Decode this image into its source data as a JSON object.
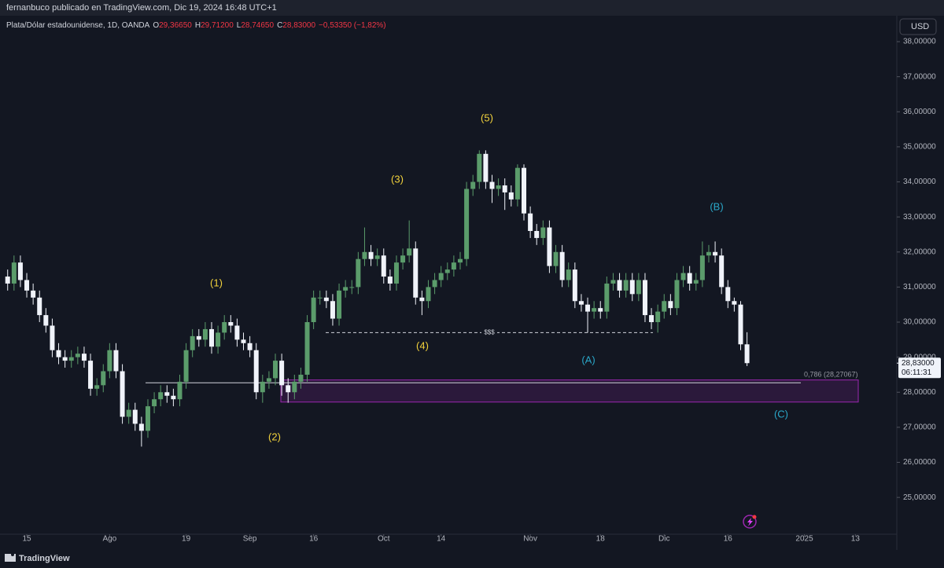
{
  "header": {
    "publisher": "fernanbuco publicado en TradingView.com, Dic 19, 2024 16:48 UTC+1"
  },
  "footer": {
    "brand": "TradingView"
  },
  "currency_button": "USD",
  "legend": {
    "symbol": "Plata/Dólar estadounidense, 1D, OANDA",
    "items": [
      {
        "key": "O",
        "value": "29,36650"
      },
      {
        "key": "H",
        "value": "29,71200"
      },
      {
        "key": "L",
        "value": "28,74650"
      },
      {
        "key": "C",
        "value": "28,83000"
      }
    ],
    "change": "−0,53350 (−1,82%)"
  },
  "chart_data": {
    "type": "candlestick",
    "up_color": "#5b9c6b",
    "down_color": "#f0f3fa",
    "grid": false,
    "xlim": [
      -1.2,
      139.5
    ],
    "xticks": [
      {
        "value": 3,
        "label": "15"
      },
      {
        "value": 16,
        "label": "Ago"
      },
      {
        "value": 28,
        "label": "19"
      },
      {
        "value": 38,
        "label": "Sep"
      },
      {
        "value": 48,
        "label": "16"
      },
      {
        "value": 59,
        "label": "Oct"
      },
      {
        "value": 68,
        "label": "14"
      },
      {
        "value": 82,
        "label": "Nov"
      },
      {
        "value": 93,
        "label": "18"
      },
      {
        "value": 103,
        "label": "Dic"
      },
      {
        "value": 113,
        "label": "16"
      },
      {
        "value": 125,
        "label": "2025"
      },
      {
        "value": 133,
        "label": "13"
      }
    ],
    "ylim": [
      23.95,
      38.74
    ],
    "yticks": [
      {
        "value": 25,
        "label": "25,00000"
      },
      {
        "value": 26,
        "label": "26,00000"
      },
      {
        "value": 27,
        "label": "27,00000"
      },
      {
        "value": 28,
        "label": "28,00000"
      },
      {
        "value": 29,
        "label": "29,00000"
      },
      {
        "value": 30,
        "label": "30,00000"
      },
      {
        "value": 31,
        "label": "31,00000"
      },
      {
        "value": 32,
        "label": "32,00000"
      },
      {
        "value": 33,
        "label": "33,00000"
      },
      {
        "value": 34,
        "label": "34,00000"
      },
      {
        "value": 35,
        "label": "35,00000"
      },
      {
        "value": 36,
        "label": "36,00000"
      },
      {
        "value": 37,
        "label": "37,00000"
      },
      {
        "value": 38,
        "label": "38,00000"
      }
    ],
    "open": [
      31.3,
      31.1,
      31.7,
      31.2,
      30.9,
      30.7,
      30.2,
      29.9,
      29.2,
      29.0,
      28.9,
      29.0,
      29.1,
      28.9,
      28.1,
      28.2,
      28.6,
      29.2,
      28.6,
      27.3,
      27.5,
      27.1,
      26.9,
      27.6,
      27.8,
      28.0,
      27.9,
      27.8,
      28.3,
      29.2,
      29.6,
      29.5,
      29.8,
      29.3,
      29.7,
      30.0,
      29.9,
      29.5,
      29.4,
      29.2,
      28.0,
      28.3,
      28.4,
      28.9,
      28.2,
      28.0,
      28.3,
      28.5,
      30.0,
      30.7,
      30.7,
      30.6,
      30.1,
      30.9,
      31.0,
      31.0,
      31.8,
      32.0,
      31.8,
      31.9,
      31.3,
      31.1,
      31.7,
      31.9,
      32.1,
      30.7,
      30.6,
      31.0,
      31.2,
      31.4,
      31.5,
      31.7,
      31.8,
      33.8,
      34.0,
      34.8,
      34.0,
      33.8,
      33.9,
      33.7,
      33.5,
      34.4,
      33.1,
      32.6,
      32.4,
      32.7,
      31.6,
      32.0,
      31.2,
      31.5,
      30.6,
      30.5,
      30.3,
      30.4,
      30.3,
      31.1,
      31.2,
      30.9,
      31.2,
      30.8,
      31.2,
      30.2,
      30.0,
      30.3,
      30.6,
      30.4,
      31.2,
      31.4,
      31.1,
      31.2,
      31.9,
      32.0,
      31.9,
      31.0,
      30.6,
      30.5,
      29.3665
    ],
    "high": [
      31.5,
      31.9,
      31.9,
      31.4,
      31.1,
      30.9,
      30.4,
      30.1,
      29.4,
      29.2,
      29.2,
      29.3,
      29.3,
      29.1,
      28.4,
      28.8,
      29.4,
      29.4,
      28.8,
      27.7,
      27.7,
      27.3,
      27.8,
      28.0,
      28.2,
      28.2,
      28.1,
      28.5,
      29.4,
      29.8,
      29.8,
      30.0,
      30.0,
      29.9,
      30.2,
      30.2,
      30.1,
      29.7,
      29.6,
      29.4,
      28.5,
      28.6,
      29.1,
      29.1,
      28.4,
      28.5,
      28.7,
      30.2,
      30.9,
      30.9,
      30.9,
      30.8,
      31.1,
      31.2,
      31.2,
      32.0,
      32.7,
      32.2,
      32.1,
      32.1,
      31.5,
      31.9,
      32.1,
      32.9,
      32.3,
      30.9,
      31.2,
      31.4,
      31.6,
      31.7,
      31.9,
      32.0,
      34.0,
      34.2,
      34.9,
      34.9,
      34.2,
      34.1,
      34.1,
      33.9,
      34.5,
      34.5,
      33.3,
      32.8,
      32.9,
      32.9,
      32.2,
      32.2,
      31.7,
      31.7,
      30.8,
      30.7,
      30.6,
      30.6,
      31.3,
      31.4,
      31.4,
      31.4,
      31.4,
      31.4,
      31.4,
      30.4,
      30.5,
      30.8,
      30.8,
      31.4,
      31.6,
      31.6,
      31.4,
      32.3,
      32.2,
      32.3,
      32.1,
      31.2,
      30.7,
      30.6,
      29.712
    ],
    "low": [
      30.9,
      30.9,
      31.0,
      30.7,
      30.5,
      30.0,
      29.7,
      29.0,
      28.8,
      28.7,
      28.7,
      28.8,
      28.7,
      27.9,
      27.9,
      28.0,
      28.4,
      28.4,
      27.1,
      27.1,
      26.9,
      26.45,
      26.7,
      27.4,
      27.6,
      27.7,
      27.6,
      27.6,
      28.1,
      29.0,
      29.3,
      29.3,
      29.1,
      29.1,
      29.5,
      29.7,
      29.3,
      29.2,
      29.0,
      27.8,
      27.7,
      28.1,
      28.2,
      27.9,
      27.7,
      27.8,
      28.1,
      28.3,
      29.8,
      30.5,
      30.4,
      29.9,
      29.9,
      30.7,
      30.8,
      30.8,
      31.6,
      31.6,
      31.6,
      31.1,
      30.9,
      30.9,
      31.5,
      31.7,
      30.5,
      30.2,
      30.4,
      30.8,
      31.0,
      31.2,
      31.3,
      31.5,
      31.6,
      33.6,
      33.8,
      33.8,
      33.4,
      33.6,
      33.2,
      33.3,
      33.3,
      32.9,
      32.4,
      32.2,
      32.2,
      31.4,
      31.4,
      31.0,
      31.0,
      30.4,
      30.3,
      29.7,
      30.1,
      30.1,
      30.1,
      30.9,
      30.7,
      30.7,
      30.6,
      30.6,
      30.0,
      29.8,
      29.7,
      30.1,
      30.2,
      30.2,
      31.0,
      30.9,
      30.9,
      31.0,
      31.7,
      31.7,
      30.8,
      30.4,
      30.3,
      29.2,
      28.7465
    ],
    "close": [
      31.1,
      31.7,
      31.2,
      30.9,
      30.7,
      30.2,
      29.9,
      29.2,
      29.0,
      28.9,
      29.0,
      29.1,
      28.9,
      28.1,
      28.2,
      28.6,
      29.2,
      28.6,
      27.3,
      27.5,
      27.1,
      26.9,
      27.6,
      27.8,
      28.0,
      27.9,
      27.8,
      28.3,
      29.2,
      29.6,
      29.5,
      29.8,
      29.3,
      29.7,
      30.0,
      29.9,
      29.5,
      29.4,
      29.2,
      28.0,
      28.3,
      28.4,
      28.9,
      28.2,
      28.0,
      28.3,
      28.5,
      30.0,
      30.7,
      30.7,
      30.6,
      30.1,
      30.9,
      31.0,
      31.0,
      31.8,
      32.0,
      31.8,
      31.9,
      31.3,
      31.1,
      31.7,
      31.9,
      32.1,
      30.7,
      30.6,
      31.0,
      31.2,
      31.4,
      31.5,
      31.7,
      31.8,
      33.8,
      34.0,
      34.8,
      34.0,
      33.8,
      33.9,
      33.7,
      33.5,
      34.4,
      33.1,
      32.6,
      32.4,
      32.7,
      31.6,
      32.0,
      31.2,
      31.5,
      30.6,
      30.5,
      30.3,
      30.4,
      30.3,
      31.1,
      31.2,
      30.9,
      31.2,
      30.8,
      31.2,
      30.2,
      30.0,
      30.3,
      30.6,
      30.4,
      31.2,
      31.4,
      31.1,
      31.2,
      31.9,
      32.0,
      31.9,
      31.0,
      30.6,
      30.5,
      29.3665,
      28.83
    ],
    "last_price": {
      "value": 28.83,
      "label": "28,83000",
      "countdown": "06:11:31"
    },
    "fib_level": {
      "value": 28.27067,
      "label": "0,786 (28,27067)"
    },
    "zone": {
      "top": 28.35,
      "bottom": 27.72
    },
    "liquidity_line": {
      "value": 29.7,
      "label": "$$$"
    },
    "annotations": [
      "(1)",
      "(2)",
      "(3)",
      "(4)",
      "(5)",
      "(A)",
      "(B)",
      "(C)"
    ]
  }
}
